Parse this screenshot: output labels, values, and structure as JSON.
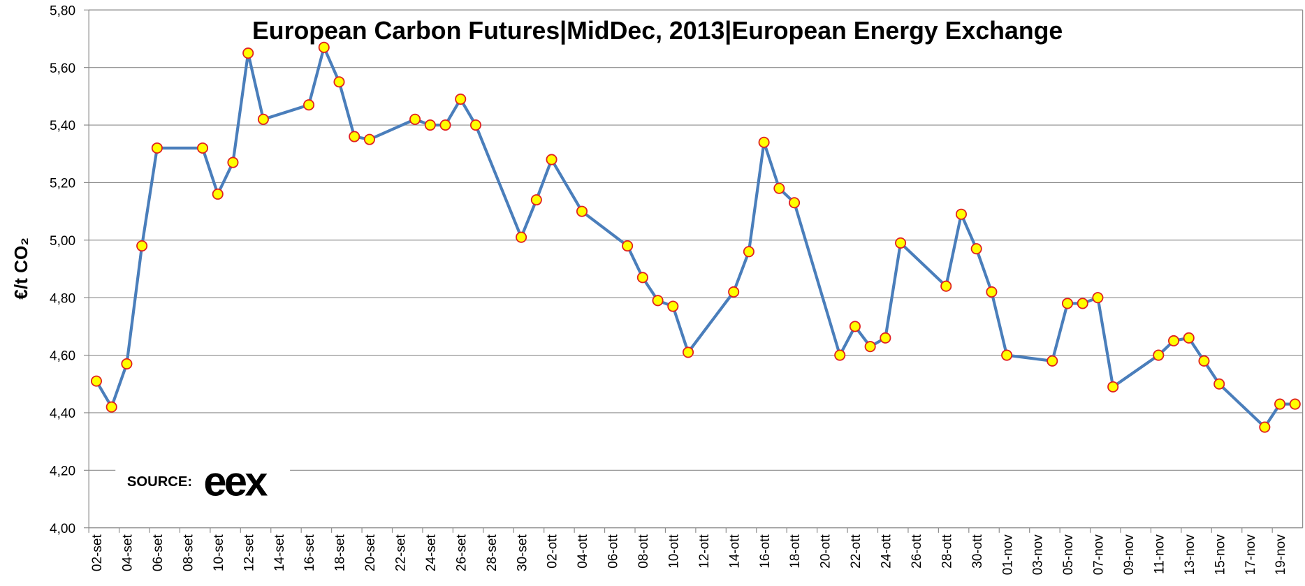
{
  "chart_data": {
    "type": "line",
    "title": "European Carbon Futures|MidDec, 2013|European Energy Exchange",
    "ylabel": "€/t CO₂",
    "source_label": "SOURCE:",
    "logo": "eex",
    "connect_gaps": true,
    "grid": true,
    "ylim": [
      4.0,
      5.8
    ],
    "yticks": [
      {
        "value": 4.0,
        "label": "4,00"
      },
      {
        "value": 4.2,
        "label": "4,20"
      },
      {
        "value": 4.4,
        "label": "4,40"
      },
      {
        "value": 4.6,
        "label": "4,60"
      },
      {
        "value": 4.8,
        "label": "4,80"
      },
      {
        "value": 5.0,
        "label": "5,00"
      },
      {
        "value": 5.2,
        "label": "5,20"
      },
      {
        "value": 5.4,
        "label": "5,40"
      },
      {
        "value": 5.6,
        "label": "5,60"
      },
      {
        "value": 5.8,
        "label": "5,80"
      }
    ],
    "categories": [
      "02-set",
      null,
      "04-set",
      null,
      "06-set",
      null,
      "08-set",
      null,
      "10-set",
      null,
      "12-set",
      null,
      "14-set",
      null,
      "16-set",
      null,
      "18-set",
      null,
      "20-set",
      null,
      "22-set",
      null,
      "24-set",
      null,
      "26-set",
      null,
      "28-set",
      null,
      "30-set",
      null,
      "02-ott",
      null,
      "04-ott",
      null,
      "06-ott",
      null,
      "08-ott",
      null,
      "10-ott",
      null,
      "12-ott",
      null,
      "14-ott",
      null,
      "16-ott",
      null,
      "18-ott",
      null,
      "20-ott",
      null,
      "22-ott",
      null,
      "24-ott",
      null,
      "26-ott",
      null,
      "28-ott",
      null,
      "30-ott",
      null,
      "01-nov",
      null,
      "03-nov",
      null,
      "05-nov",
      null,
      "07-nov",
      null,
      "09-nov",
      null,
      "11-nov",
      null,
      "13-nov",
      null,
      "15-nov",
      null,
      "17-nov",
      null,
      "19-nov",
      null
    ],
    "series": [
      {
        "color": "#4a7ebb",
        "marker_fill": "#ffff00",
        "marker_stroke": "#e02020",
        "values": [
          4.51,
          4.42,
          4.57,
          4.98,
          5.32,
          null,
          null,
          5.32,
          5.16,
          5.27,
          5.65,
          5.42,
          null,
          null,
          5.47,
          5.67,
          5.55,
          5.36,
          5.35,
          null,
          null,
          5.42,
          5.4,
          5.4,
          5.49,
          5.4,
          null,
          null,
          5.01,
          5.14,
          5.28,
          null,
          5.1,
          null,
          null,
          4.98,
          4.87,
          4.79,
          4.77,
          4.61,
          null,
          null,
          4.82,
          4.96,
          5.34,
          5.18,
          5.13,
          null,
          null,
          4.6,
          4.7,
          4.63,
          4.66,
          4.99,
          null,
          null,
          4.84,
          5.09,
          4.97,
          4.82,
          4.6,
          null,
          null,
          4.58,
          4.78,
          4.78,
          4.8,
          4.49,
          null,
          null,
          4.6,
          4.65,
          4.66,
          4.58,
          4.5,
          null,
          null,
          4.35,
          4.43,
          4.43
        ]
      }
    ]
  }
}
